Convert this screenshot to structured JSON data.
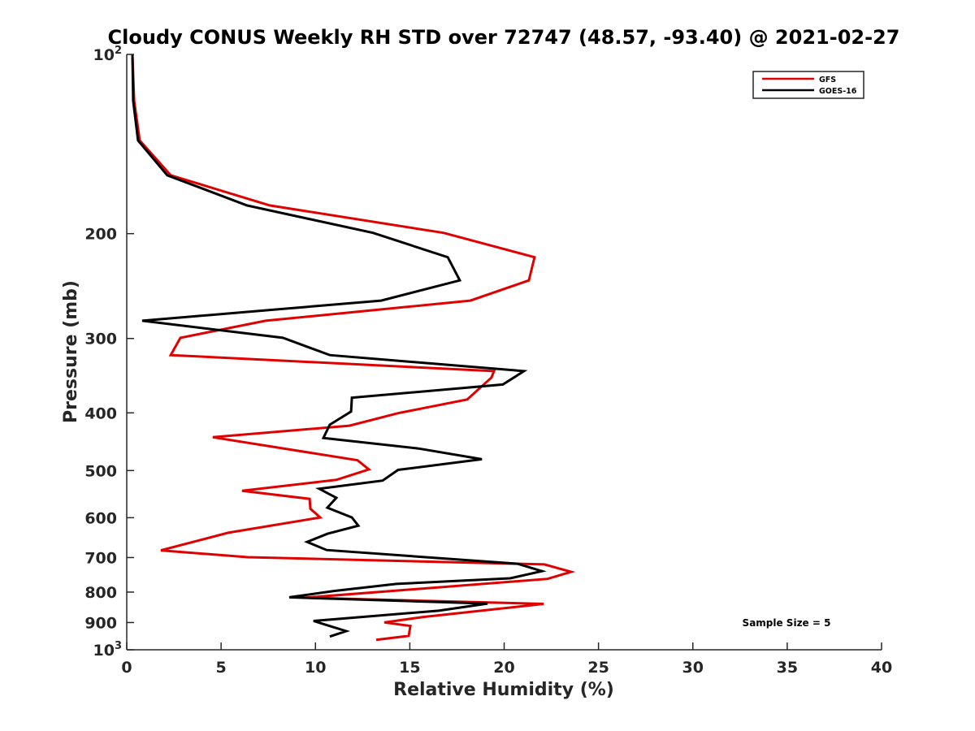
{
  "chart_data": {
    "type": "line",
    "title": "Cloudy CONUS Weekly RH STD over 72747 (48.57, -93.40) @ 2021-02-27",
    "xlabel": "Relative Humidity (%)",
    "ylabel": "Pressure (mb)",
    "xlim": [
      0,
      40
    ],
    "ylim": [
      100,
      1000
    ],
    "yscale": "log",
    "yreversed": true,
    "grid": false,
    "x_ticks": [
      0,
      5,
      10,
      15,
      20,
      25,
      30,
      35,
      40
    ],
    "x_tick_labels": [
      "0",
      "5",
      "10",
      "15",
      "20",
      "25",
      "30",
      "35",
      "40"
    ],
    "y_ticks": [
      100,
      200,
      300,
      400,
      500,
      600,
      700,
      800,
      900,
      1000
    ],
    "y_tick_labels": [
      {
        "base": "10",
        "exp": "2"
      },
      {
        "text": "200"
      },
      {
        "text": "300"
      },
      {
        "text": "400"
      },
      {
        "text": "500"
      },
      {
        "text": "600"
      },
      {
        "text": "700"
      },
      {
        "text": "800"
      },
      {
        "text": "900"
      },
      {
        "base": "10",
        "exp": "3"
      }
    ],
    "legend": {
      "position": "top-right",
      "entries": [
        {
          "name": "GFS",
          "color": "#e00000"
        },
        {
          "name": "GOES-16",
          "color": "#000000"
        }
      ]
    },
    "annotation": "Sample Size = 5",
    "annotation_position": "bottom-right",
    "series": [
      {
        "name": "GFS",
        "color": "#e00000",
        "points": [
          [
            0.3,
            100
          ],
          [
            0.39,
            119.6
          ],
          [
            0.69,
            139.5
          ],
          [
            2.33,
            159.6
          ],
          [
            7.58,
            179.3
          ],
          [
            16.79,
            199.4
          ],
          [
            21.61,
            219.1
          ],
          [
            21.31,
            239.6
          ],
          [
            18.21,
            259.1
          ],
          [
            7.36,
            280.1
          ],
          [
            2.84,
            299.2
          ],
          [
            2.33,
            319.9
          ],
          [
            19.46,
            340.3
          ],
          [
            19.33,
            348.9
          ],
          [
            18.04,
            379.9
          ],
          [
            14.38,
            400.5
          ],
          [
            11.8,
            420.4
          ],
          [
            4.56,
            439.5
          ],
          [
            12.23,
            480.6
          ],
          [
            12.83,
            497.8
          ],
          [
            11.11,
            518.3
          ],
          [
            6.11,
            540.6
          ],
          [
            9.69,
            557.8
          ],
          [
            9.73,
            579.6
          ],
          [
            10.25,
            599.5
          ],
          [
            5.38,
            635.9
          ],
          [
            1.81,
            680.7
          ],
          [
            6.42,
            698.9
          ],
          [
            22.13,
            718.8
          ],
          [
            23.55,
            739.8
          ],
          [
            22.3,
            760.2
          ],
          [
            9.43,
            817.6
          ],
          [
            22.09,
            837.5
          ],
          [
            15.67,
            881.3
          ],
          [
            13.65,
            899.6
          ],
          [
            15.03,
            912.0
          ],
          [
            14.94,
            947.8
          ],
          [
            13.22,
            962.3
          ]
        ]
      },
      {
        "name": "GOES-16",
        "color": "#000000",
        "points": [
          [
            0.3,
            100
          ],
          [
            0.34,
            119.6
          ],
          [
            0.6,
            139.5
          ],
          [
            2.15,
            159.6
          ],
          [
            6.37,
            179.3
          ],
          [
            13.05,
            199.4
          ],
          [
            17.01,
            219.1
          ],
          [
            17.65,
            239.6
          ],
          [
            13.48,
            259.1
          ],
          [
            0.82,
            280.1
          ],
          [
            8.27,
            299.2
          ],
          [
            10.76,
            319.9
          ],
          [
            21.05,
            340.3
          ],
          [
            19.93,
            358.4
          ],
          [
            11.93,
            377.2
          ],
          [
            11.89,
            398.0
          ],
          [
            10.76,
            418.7
          ],
          [
            10.42,
            440.8
          ],
          [
            15.46,
            459.2
          ],
          [
            18.82,
            478.5
          ],
          [
            14.38,
            498.7
          ],
          [
            13.56,
            519.8
          ],
          [
            10.2,
            536.6
          ],
          [
            11.11,
            555.6
          ],
          [
            10.63,
            577.1
          ],
          [
            11.93,
            599.5
          ],
          [
            12.27,
            618.7
          ],
          [
            10.63,
            638.5
          ],
          [
            9.56,
            658.9
          ],
          [
            10.59,
            680.0
          ],
          [
            20.71,
            717.0
          ],
          [
            22.0,
            737.7
          ],
          [
            20.32,
            758.4
          ],
          [
            14.29,
            775.0
          ],
          [
            10.98,
            796.7
          ],
          [
            8.61,
            816.3
          ],
          [
            19.12,
            836.4
          ],
          [
            16.53,
            859.7
          ],
          [
            9.9,
            894.4
          ],
          [
            10.68,
            910.7
          ],
          [
            11.63,
            930.2
          ],
          [
            10.76,
            950.1
          ]
        ]
      }
    ]
  }
}
